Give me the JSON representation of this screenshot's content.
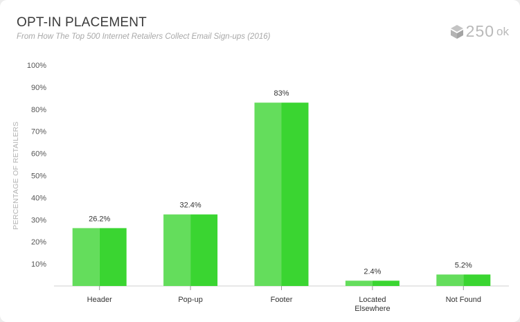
{
  "title": "OPT-IN PLACEMENT",
  "subtitle": "From How The Top 500 Internet Retailers Collect Email Sign-ups (2016)",
  "brand": {
    "number": "250",
    "suffix": "ok"
  },
  "colors": {
    "bar_light": "#64dd5c",
    "bar_dark": "#3ad531",
    "axis_text": "#555555",
    "label_text": "#333333",
    "ylabel_text": "#b3b3b3",
    "grid": "#e3e3e3"
  },
  "chart_data": {
    "type": "bar",
    "categories": [
      "Header",
      "Pop-up",
      "Footer",
      "Located Elsewhere",
      "Not Found"
    ],
    "category_lines": [
      [
        "Header"
      ],
      [
        "Pop-up"
      ],
      [
        "Footer"
      ],
      [
        "Located",
        "Elsewhere"
      ],
      [
        "Not Found"
      ]
    ],
    "values": [
      26.2,
      32.4,
      83,
      2.4,
      5.2
    ],
    "data_labels": [
      "26.2%",
      "32.4%",
      "83%",
      "2.4%",
      "5.2%"
    ],
    "ylabel": "PERCENTAGE OF RETAILERS",
    "xlabel": "",
    "ylim": [
      0,
      100
    ],
    "yticks": [
      10,
      20,
      30,
      40,
      50,
      60,
      70,
      80,
      90,
      100
    ],
    "ytick_labels": [
      "10%",
      "20%",
      "30%",
      "40%",
      "50%",
      "60%",
      "70%",
      "80%",
      "90%",
      "100%"
    ],
    "grid": false
  }
}
